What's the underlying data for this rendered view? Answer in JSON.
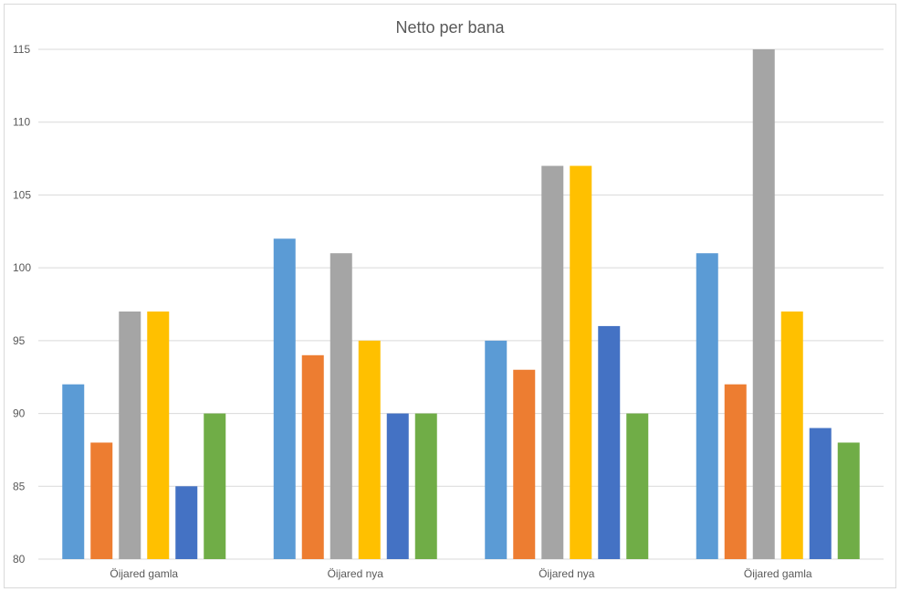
{
  "chart_data": {
    "type": "bar",
    "title": "Netto per bana",
    "categories": [
      "Öijared gamla",
      "Öijared nya",
      "Öijared nya",
      "Öijared gamla"
    ],
    "series": [
      {
        "color": "#5b9bd5",
        "values": [
          92,
          102,
          95,
          101
        ]
      },
      {
        "color": "#ed7d31",
        "values": [
          88,
          94,
          93,
          92
        ]
      },
      {
        "color": "#a5a5a5",
        "values": [
          97,
          101,
          107,
          115
        ]
      },
      {
        "color": "#ffc000",
        "values": [
          97,
          95,
          107,
          97
        ]
      },
      {
        "color": "#4472c4",
        "values": [
          85,
          90,
          96,
          89
        ]
      },
      {
        "color": "#70ad47",
        "values": [
          90,
          90,
          90,
          88
        ]
      }
    ],
    "y_ticks": [
      "80",
      "85",
      "90",
      "95",
      "100",
      "105",
      "110",
      "115"
    ],
    "ylim": [
      80,
      115
    ],
    "grid": true,
    "legend": "none",
    "xlabel": "",
    "ylabel": ""
  }
}
